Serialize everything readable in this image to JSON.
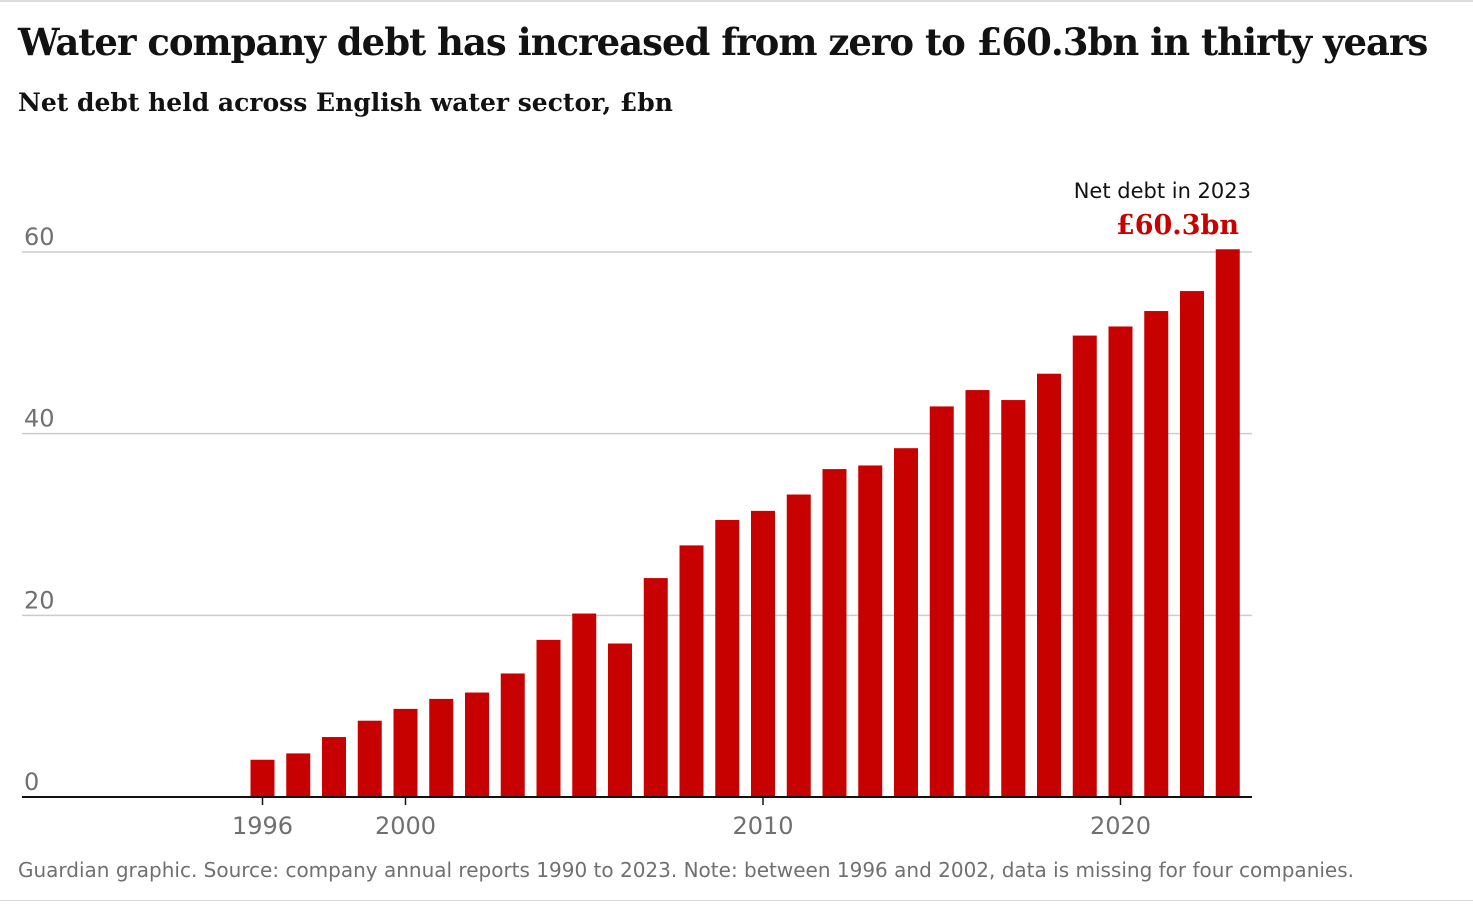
{
  "header": {
    "title": "Water company debt has increased from zero to £60.3bn in thirty years",
    "subtitle": "Net debt held across English water sector, £bn"
  },
  "footer": {
    "note": "Guardian graphic. Source: company annual reports 1990 to 2023. Note: between 1996 and 2002, data is missing for four companies."
  },
  "colors": {
    "bar": "#c70000",
    "gridline": "#cccccc",
    "axis": "#121212",
    "muted_text": "#707070"
  },
  "chart_data": {
    "type": "bar",
    "title": "Water company debt has increased from zero to £60.3bn in thirty years",
    "subtitle": "Net debt held across English water sector, £bn",
    "xlabel": "",
    "ylabel": "",
    "x": [
      1990,
      1991,
      1992,
      1993,
      1994,
      1995,
      1996,
      1997,
      1998,
      1999,
      2000,
      2001,
      2002,
      2003,
      2004,
      2005,
      2006,
      2007,
      2008,
      2009,
      2010,
      2011,
      2012,
      2013,
      2014,
      2015,
      2016,
      2017,
      2018,
      2019,
      2020,
      2021,
      2022,
      2023
    ],
    "values": [
      0.1,
      0.1,
      0,
      0,
      0,
      0,
      4.1,
      4.8,
      6.6,
      8.4,
      9.7,
      10.8,
      11.5,
      13.6,
      17.3,
      20.2,
      16.9,
      24.1,
      27.7,
      30.5,
      31.5,
      33.3,
      36.1,
      36.5,
      38.4,
      43.0,
      44.8,
      43.7,
      46.6,
      50.8,
      51.8,
      53.5,
      55.7,
      60.3
    ],
    "ylim": [
      0,
      60
    ],
    "yticks": [
      0,
      20,
      40,
      60
    ],
    "xticks": [
      1996,
      2000,
      2010,
      2020
    ],
    "grid": true,
    "annotation": {
      "label": "Net debt in 2023",
      "value": "£60.3bn",
      "year": 2023
    },
    "tick_labels": {
      "y": [
        "0",
        "20",
        "40",
        "60"
      ],
      "x": [
        "1996",
        "2000",
        "2010",
        "2020"
      ]
    }
  }
}
